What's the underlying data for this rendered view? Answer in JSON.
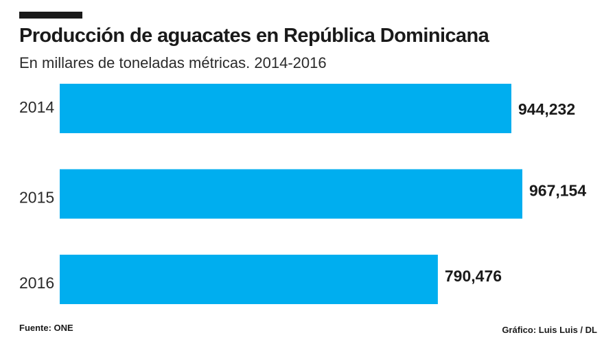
{
  "header": {
    "title": "Producción de aguacates en República Dominicana",
    "subtitle": "En millares de toneladas métricas. 2014-2016"
  },
  "footer": {
    "source": "Fuente: ONE",
    "credit": "Gráfico: Luis Luis / DL"
  },
  "colors": {
    "bar": "#00aeef",
    "text": "#1a1a1a",
    "rule": "#1a1a1a"
  },
  "chart_data": {
    "type": "bar",
    "orientation": "horizontal",
    "title": "Producción de aguacates en República Dominicana",
    "subtitle": "En millares de toneladas métricas. 2014-2016",
    "categories": [
      "2014",
      "2015",
      "2016"
    ],
    "values": [
      944232,
      967154,
      790476
    ],
    "value_labels": [
      "944,232",
      "967,154",
      "790,476"
    ],
    "xlabel": "",
    "ylabel": "",
    "xlim": [
      0,
      967154
    ],
    "grid": false,
    "legend": "none"
  }
}
